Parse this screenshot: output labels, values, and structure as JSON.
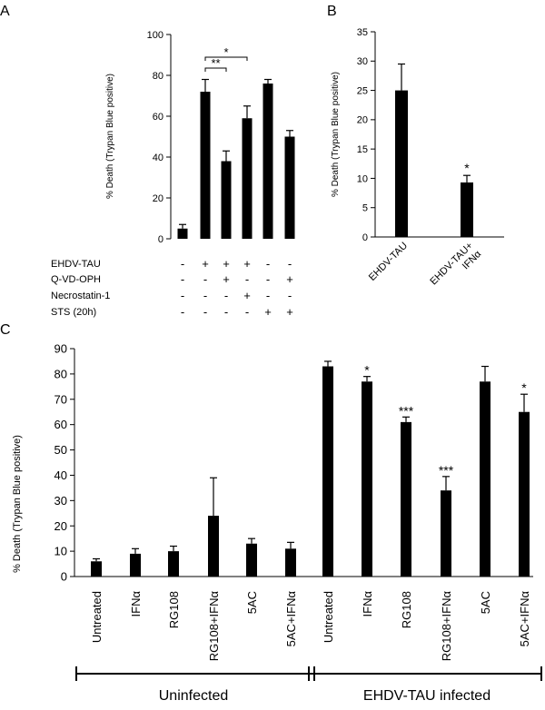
{
  "chart_data": [
    {
      "panel": "A",
      "type": "bar",
      "ylabel": "% Death (Trypan Blue positive)",
      "ylim": [
        0,
        100
      ],
      "yticks": [
        0,
        20,
        40,
        60,
        80,
        100
      ],
      "values": [
        5,
        72,
        38,
        59,
        76,
        50
      ],
      "errors": [
        2,
        6,
        5,
        6,
        2,
        3
      ],
      "condition_rows": [
        {
          "label": "EHDV-TAU",
          "signs": [
            "-",
            "+",
            "+",
            "+",
            "-",
            "-"
          ]
        },
        {
          "label": "Q-VD-OPH",
          "signs": [
            "-",
            "-",
            "+",
            "-",
            "-",
            "+"
          ]
        },
        {
          "label": "Necrostatin-1",
          "signs": [
            "-",
            "-",
            "-",
            "+",
            "-",
            "-"
          ]
        },
        {
          "label": "STS (20h)",
          "signs": [
            "-",
            "-",
            "-",
            "-",
            "+",
            "+"
          ]
        }
      ],
      "significance": [
        {
          "from": 1,
          "to": 2,
          "label": "**"
        },
        {
          "from": 1,
          "to": 3,
          "label": "*"
        }
      ]
    },
    {
      "panel": "B",
      "type": "bar",
      "ylabel": "% Death (Trypan Blue positive)",
      "ylim": [
        0,
        35
      ],
      "yticks": [
        0,
        5,
        10,
        15,
        20,
        25,
        30,
        35
      ],
      "categories": [
        [
          "EHDV-TAU"
        ],
        [
          "EHDV-TAU+",
          "IFNα"
        ]
      ],
      "values": [
        25,
        9.3
      ],
      "errors": [
        4.5,
        1.2
      ],
      "significance": [
        "",
        "*"
      ]
    },
    {
      "panel": "C",
      "type": "bar",
      "ylabel": "% Death (Trypan Blue positive)",
      "ylim": [
        0,
        90
      ],
      "yticks": [
        0,
        10,
        20,
        30,
        40,
        50,
        60,
        70,
        80,
        90
      ],
      "categories": [
        "Untreated",
        "IFNα",
        "RG108",
        "RG108+IFNα",
        "5AC",
        "5AC+IFNα",
        "Untreated",
        "IFNα",
        "RG108",
        "RG108+IFNα",
        "5AC",
        "5AC+IFNα"
      ],
      "values": [
        6,
        9,
        10,
        24,
        13,
        11,
        83,
        77,
        61,
        34,
        77,
        65
      ],
      "errors": [
        1,
        2,
        2,
        15,
        2,
        2.5,
        2,
        2,
        2,
        5.5,
        6,
        7
      ],
      "significance": [
        "",
        "",
        "",
        "",
        "",
        "",
        "",
        "*",
        "***",
        "***",
        "",
        "*"
      ],
      "groups": [
        {
          "label": "Uninfected",
          "first": 0,
          "last": 5
        },
        {
          "label": "EHDV-TAU infected",
          "first": 6,
          "last": 11
        }
      ]
    }
  ],
  "panel_letters": [
    "A",
    "B",
    "C"
  ]
}
